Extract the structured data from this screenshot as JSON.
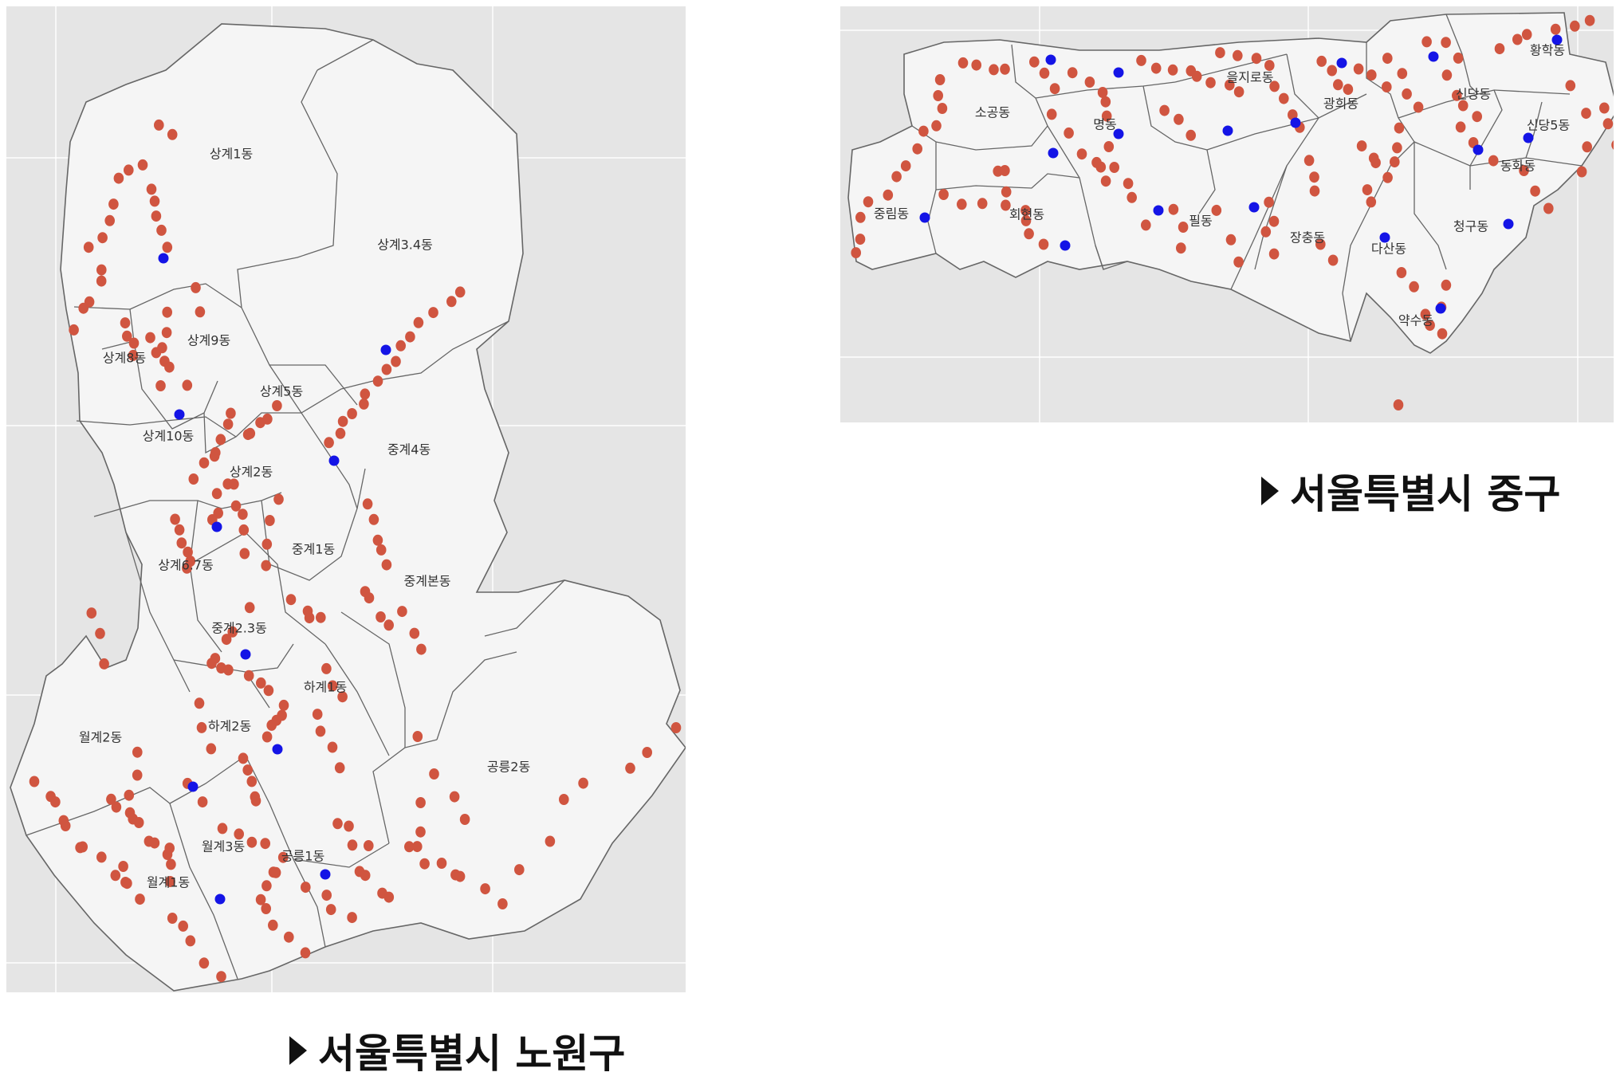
{
  "colors": {
    "panel_bg": "#e5e5e5",
    "land": "#f5f5f5",
    "border": "#666666",
    "grid": "#ffffff",
    "dot_red": "#d05540",
    "dot_blue": "#1414e6"
  },
  "maps": [
    {
      "id": "nowon",
      "caption": "서울특별시 노원구",
      "regions": [
        "상계1동",
        "상계3.4동",
        "상계8동",
        "상계9동",
        "상계5동",
        "상계10동",
        "중계4동",
        "상계2동",
        "상계6.7동",
        "중계1동",
        "중계본동",
        "중계2.3동",
        "하계1동",
        "월계2동",
        "하계2동",
        "공릉2동",
        "월계3동",
        "공릉1동",
        "월계1동"
      ],
      "point_types": {
        "red": "point-red",
        "blue": "point-blue"
      }
    },
    {
      "id": "junggu",
      "caption": "서울특별시 중구",
      "regions": [
        "황학동",
        "을지로동",
        "광희동",
        "신당동",
        "소공동",
        "명동",
        "신당5동",
        "동화동",
        "중림동",
        "회현동",
        "필동",
        "장충동",
        "다산동",
        "청구동",
        "약수동"
      ],
      "point_types": {
        "red": "point-red",
        "blue": "point-blue"
      }
    }
  ]
}
